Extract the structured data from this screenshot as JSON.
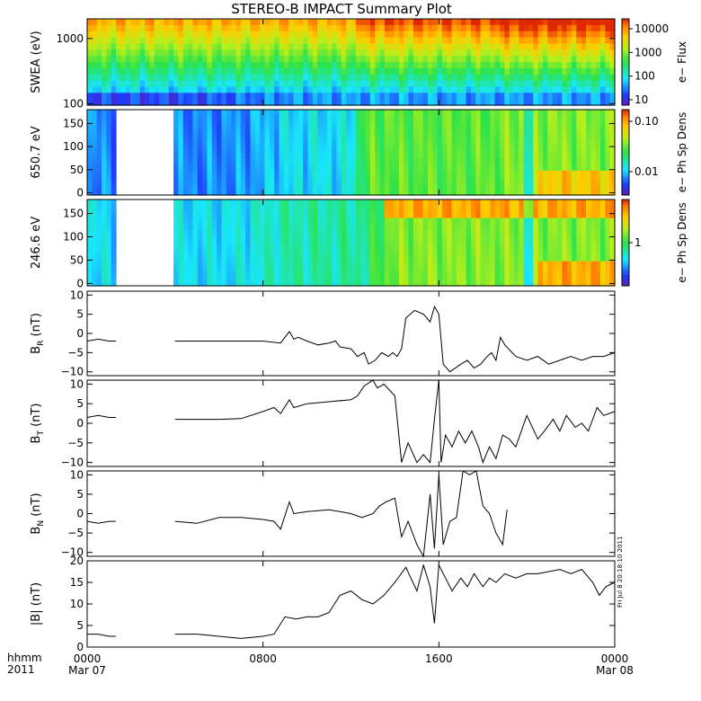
{
  "title": "STEREO-B IMPACT Summary Plot",
  "stamp": "Fri Jul  8 20:18:10 2011",
  "time_legend": {
    "format": "hhmm",
    "year": "2011"
  },
  "time_ticks": [
    {
      "t": 0,
      "label": "0000",
      "date": "Mar 07"
    },
    {
      "t": 8,
      "label": "0800",
      "date": ""
    },
    {
      "t": 16,
      "label": "1600",
      "date": ""
    },
    {
      "t": 24,
      "label": "0000",
      "date": "Mar 08"
    }
  ],
  "colors": {
    "axis": "#000000",
    "line": "#000000",
    "gap": "#ffffff"
  },
  "chart_data": [
    {
      "type": "heatmap",
      "ylabel": "SWEA (eV)",
      "ylog": true,
      "ylim": [
        95,
        2000
      ],
      "yticks": [
        100,
        1000
      ],
      "ytick_labels": [
        "100",
        "1000"
      ],
      "cbar_label": "e− Flux",
      "cbar_ticks": [
        10,
        100,
        1000,
        10000
      ],
      "cbar_tick_labels": [
        "10",
        "100",
        "1000",
        "10000"
      ],
      "gaps": []
    },
    {
      "type": "heatmap",
      "ylabel": "650.7 eV",
      "ylim": [
        -5,
        180
      ],
      "yticks": [
        0,
        50,
        100,
        150
      ],
      "ytick_labels": [
        "0",
        "50",
        "100",
        "150"
      ],
      "cbar_label": "e− Ph Sp Dens",
      "cbar_ticks": [
        0.01,
        0.1
      ],
      "cbar_tick_labels": [
        "0.01",
        "0.10"
      ],
      "gaps": [
        [
          1.3,
          4.0
        ]
      ]
    },
    {
      "type": "heatmap",
      "ylabel": "246.6 eV",
      "ylim": [
        -5,
        180
      ],
      "yticks": [
        0,
        50,
        100,
        150
      ],
      "ytick_labels": [
        "0",
        "50",
        "100",
        "150"
      ],
      "cbar_label": "e− Ph Sp Dens",
      "cbar_ticks": [
        1
      ],
      "cbar_tick_labels": [
        "1"
      ],
      "gaps": [
        [
          1.3,
          4.0
        ]
      ]
    },
    {
      "type": "line",
      "ylabel": "B",
      "ylabel_sub": "R",
      "ylabel_unit": "(nT)",
      "ylim": [
        -11,
        11
      ],
      "yticks": [
        -10,
        -5,
        0,
        5,
        10
      ],
      "ytick_labels": [
        "−10",
        "−5",
        "0",
        "5",
        "10"
      ],
      "x": [
        0,
        0.5,
        1.0,
        1.3,
        4.0,
        5.0,
        6.5,
        8.0,
        8.8,
        9.2,
        9.4,
        9.6,
        10.0,
        10.5,
        11.0,
        11.3,
        11.5,
        12.0,
        12.3,
        12.6,
        12.8,
        13.1,
        13.4,
        13.7,
        13.9,
        14.1,
        14.3,
        14.5,
        14.9,
        15.3,
        15.6,
        15.8,
        16.0,
        16.2,
        16.5,
        17.0,
        17.3,
        17.6,
        17.9,
        18.2,
        18.4,
        18.6,
        18.8,
        19.0,
        19.5,
        20.0,
        20.5,
        21.0,
        21.5,
        22.0,
        22.5,
        23.0,
        23.5,
        24.0
      ],
      "y": [
        -2,
        -1.5,
        -2,
        -2,
        -2,
        -2,
        -2,
        -2,
        -2.5,
        0.5,
        -1.5,
        -1,
        -2,
        -3,
        -2.5,
        -2,
        -3.5,
        -4,
        -6,
        -5,
        -8,
        -7,
        -5,
        -6,
        -5,
        -6,
        -4,
        4,
        6,
        5,
        3,
        7,
        5,
        -8,
        -10,
        -8,
        -7,
        -9,
        -8,
        -6,
        -5,
        -7,
        -1,
        -3,
        -6,
        -7,
        -6,
        -8,
        -7,
        -6,
        -7,
        -6,
        -6,
        -5
      ],
      "gaps": [
        [
          1.3,
          4.0
        ]
      ]
    },
    {
      "type": "line",
      "ylabel": "B",
      "ylabel_sub": "T",
      "ylabel_unit": "(nT)",
      "ylim": [
        -11,
        11
      ],
      "yticks": [
        -10,
        -5,
        0,
        5,
        10
      ],
      "ytick_labels": [
        "−10",
        "−5",
        "0",
        "5",
        "10"
      ],
      "x": [
        0,
        0.5,
        1.0,
        1.3,
        4.0,
        5.0,
        6.0,
        7.0,
        8.0,
        8.5,
        8.8,
        9.2,
        9.4,
        10.0,
        11.0,
        12.0,
        12.3,
        12.6,
        13.0,
        13.2,
        13.5,
        14.0,
        14.3,
        14.6,
        15.0,
        15.3,
        15.6,
        15.8,
        16.0,
        16.1,
        16.3,
        16.6,
        16.9,
        17.2,
        17.5,
        17.8,
        18.0,
        18.3,
        18.6,
        18.9,
        19.2,
        19.5,
        20.0,
        20.5,
        20.8,
        21.2,
        21.5,
        21.8,
        22.2,
        22.5,
        22.8,
        23.2,
        23.5,
        24.0
      ],
      "y": [
        1.5,
        2,
        1.5,
        1.5,
        1.0,
        1.0,
        1.0,
        1.2,
        3,
        4,
        2.5,
        6,
        4,
        5,
        5.5,
        6,
        7,
        9.5,
        11,
        9,
        10,
        7,
        -10,
        -5,
        -10,
        -8,
        -10,
        1,
        11,
        -10,
        -3,
        -6,
        -2,
        -5,
        -2,
        -6,
        -10,
        -6,
        -9,
        -3,
        -4,
        -6,
        2,
        -4,
        -2,
        1,
        -2,
        2,
        -1,
        0,
        -2,
        4,
        2,
        3
      ],
      "gaps": [
        [
          1.3,
          4.0
        ]
      ]
    },
    {
      "type": "line",
      "ylabel": "B",
      "ylabel_sub": "N",
      "ylabel_unit": "(nT)",
      "ylim": [
        -11,
        11
      ],
      "yticks": [
        -10,
        -5,
        0,
        5,
        10
      ],
      "ytick_labels": [
        "−10",
        "−5",
        "0",
        "5",
        "10"
      ],
      "x": [
        0,
        0.5,
        1.0,
        1.3,
        4.0,
        5.0,
        6.0,
        7.0,
        8.0,
        8.5,
        8.8,
        9.2,
        9.4,
        10.0,
        11.0,
        11.5,
        12.0,
        12.5,
        13.0,
        13.3,
        13.6,
        14.0,
        14.3,
        14.6,
        15.0,
        15.3,
        15.6,
        15.8,
        16.0,
        16.2,
        16.5,
        16.8,
        17.1,
        17.4,
        17.7,
        18.0,
        18.3,
        18.6,
        18.9,
        19.1
      ],
      "y": [
        -2,
        -2.5,
        -2,
        -2,
        -2,
        -2.5,
        -1,
        -1,
        -1.5,
        -2,
        -4,
        3,
        0,
        0.5,
        1,
        0.5,
        0,
        -1,
        0,
        2,
        3,
        4,
        -6,
        -2,
        -8,
        -11,
        5,
        -9,
        10,
        -8,
        -2,
        -1,
        11,
        10,
        11,
        2,
        0,
        -5,
        -8,
        1
      ],
      "gaps": [
        [
          1.3,
          4.0
        ]
      ]
    },
    {
      "type": "line",
      "ylabel": "|B|",
      "ylabel_unit": "(nT)",
      "ylim": [
        0,
        20
      ],
      "yticks": [
        0,
        5,
        10,
        15,
        20
      ],
      "ytick_labels": [
        "0",
        "5",
        "10",
        "15",
        "20"
      ],
      "x": [
        0,
        0.5,
        1.0,
        1.3,
        4.0,
        5.0,
        6.0,
        7.0,
        8.0,
        8.5,
        9.0,
        9.5,
        10.0,
        10.5,
        11.0,
        11.5,
        12.0,
        12.5,
        13.0,
        13.5,
        14.0,
        14.5,
        15.0,
        15.3,
        15.6,
        15.8,
        16.0,
        16.3,
        16.6,
        17.0,
        17.3,
        17.6,
        18.0,
        18.3,
        18.6,
        19.0,
        19.5,
        20.0,
        20.5,
        21.0,
        21.5,
        22.0,
        22.5,
        23.0,
        23.3,
        23.6,
        24.0
      ],
      "y": [
        3,
        3,
        2.5,
        2.5,
        3,
        3,
        2.5,
        2,
        2.5,
        3,
        7,
        6.5,
        7,
        7,
        8,
        12,
        13,
        11,
        10,
        12,
        15,
        18.5,
        13,
        19,
        14,
        5.5,
        19,
        16,
        13,
        16,
        14,
        17,
        14,
        16,
        15,
        17,
        16,
        17,
        17,
        17.5,
        18,
        17,
        18,
        15,
        12,
        14,
        15
      ],
      "gaps": [
        [
          1.3,
          4.0
        ]
      ]
    }
  ]
}
